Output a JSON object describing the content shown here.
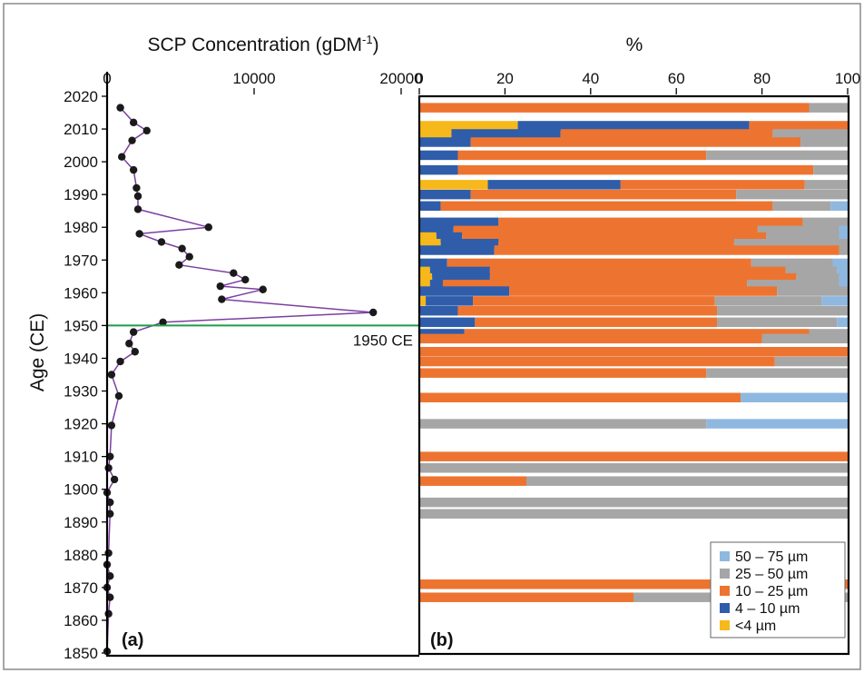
{
  "colors": {
    "um50_75": "#8FB8E0",
    "um25_50": "#A6A6A6",
    "um10_25": "#ED7430",
    "um4_10": "#2F5DAA",
    "lt4": "#F7B81B",
    "line": "#7B3FA0",
    "marker": "#1a1a1a",
    "ref": "#1E9E4A"
  },
  "chart_data": [
    {
      "type": "line",
      "panel_label": "(a)",
      "title": "SCP Concentration (gDM",
      "title_sup": "-1",
      "title_close": ")",
      "ylabel": "Age (CE)",
      "xlim": [
        0,
        20000
      ],
      "ylim": [
        1850,
        2020
      ],
      "xticks": [
        "0",
        "10000",
        "20000"
      ],
      "xtick_values": [
        0,
        10000,
        20000
      ],
      "yticks": [
        "1850",
        "1860",
        "1870",
        "1880",
        "1890",
        "1900",
        "1910",
        "1920",
        "1930",
        "1940",
        "1950",
        "1960",
        "1970",
        "1980",
        "1990",
        "2000",
        "2010",
        "2020"
      ],
      "ytick_values": [
        1850,
        1860,
        1870,
        1880,
        1890,
        1900,
        1910,
        1920,
        1930,
        1940,
        1950,
        1960,
        1970,
        1980,
        1990,
        2000,
        2010,
        2020
      ],
      "reference_line": {
        "y": 1950,
        "label": "1950 CE"
      },
      "points": [
        {
          "x": 900,
          "y": 2016.5
        },
        {
          "x": 1800,
          "y": 2012
        },
        {
          "x": 2700,
          "y": 2009.5
        },
        {
          "x": 1700,
          "y": 2006.5
        },
        {
          "x": 1000,
          "y": 2001.5
        },
        {
          "x": 1800,
          "y": 1997.5
        },
        {
          "x": 2000,
          "y": 1992
        },
        {
          "x": 2100,
          "y": 1989.5
        },
        {
          "x": 2100,
          "y": 1985.5
        },
        {
          "x": 6900,
          "y": 1980
        },
        {
          "x": 2200,
          "y": 1978
        },
        {
          "x": 3700,
          "y": 1975.5
        },
        {
          "x": 5100,
          "y": 1973.5
        },
        {
          "x": 5600,
          "y": 1971
        },
        {
          "x": 4900,
          "y": 1968.5
        },
        {
          "x": 8600,
          "y": 1966
        },
        {
          "x": 9400,
          "y": 1964
        },
        {
          "x": 7700,
          "y": 1962
        },
        {
          "x": 10600,
          "y": 1961
        },
        {
          "x": 7800,
          "y": 1958
        },
        {
          "x": 18100,
          "y": 1954
        },
        {
          "x": 3800,
          "y": 1951
        },
        {
          "x": 1800,
          "y": 1948
        },
        {
          "x": 1500,
          "y": 1944.5
        },
        {
          "x": 1900,
          "y": 1942
        },
        {
          "x": 900,
          "y": 1939
        },
        {
          "x": 300,
          "y": 1935
        },
        {
          "x": 800,
          "y": 1928.5
        },
        {
          "x": 300,
          "y": 1919.5
        },
        {
          "x": 200,
          "y": 1910
        },
        {
          "x": 100,
          "y": 1906.5
        },
        {
          "x": 500,
          "y": 1903
        },
        {
          "x": 0,
          "y": 1899
        },
        {
          "x": 200,
          "y": 1896
        },
        {
          "x": 200,
          "y": 1892.5
        },
        {
          "x": 100,
          "y": 1880.5
        },
        {
          "x": 0,
          "y": 1877
        },
        {
          "x": 200,
          "y": 1873.5
        },
        {
          "x": 0,
          "y": 1870
        },
        {
          "x": 200,
          "y": 1867
        },
        {
          "x": 100,
          "y": 1862
        },
        {
          "x": 0,
          "y": 1850.5
        }
      ]
    },
    {
      "type": "bar",
      "orientation": "horizontal",
      "stacked": true,
      "panel_label": "(b)",
      "title": "%",
      "xlim": [
        0,
        100
      ],
      "ylim": [
        1850,
        2020
      ],
      "xticks": [
        "0",
        "20",
        "40",
        "60",
        "80",
        "100"
      ],
      "xtick_values": [
        0,
        20,
        40,
        60,
        80,
        100
      ],
      "series_order": [
        "lt4",
        "um4_10",
        "um10_25",
        "um25_50",
        "um50_75"
      ],
      "legend": [
        {
          "key": "um50_75",
          "label": "50 – 75 µm"
        },
        {
          "key": "um25_50",
          "label": "25 – 50 µm"
        },
        {
          "key": "um10_25",
          "label": "10 – 25 µm"
        },
        {
          "key": "um4_10",
          "label": "4 – 10 µm"
        },
        {
          "key": "lt4",
          "label": "<4 µm"
        }
      ],
      "legend_position": "bottom-right",
      "bars": [
        {
          "y": 2016.5,
          "lt4": 0,
          "um4_10": 0,
          "um10_25": 91,
          "um25_50": 9,
          "um50_75": 0
        },
        {
          "y": 2011,
          "lt4": 23,
          "um4_10": 54,
          "um10_25": 23,
          "um25_50": 0,
          "um50_75": 0
        },
        {
          "y": 2008.5,
          "lt4": 7.5,
          "um4_10": 25.5,
          "um10_25": 49.5,
          "um25_50": 17.5,
          "um50_75": 0
        },
        {
          "y": 2006,
          "lt4": 0,
          "um4_10": 12,
          "um10_25": 77,
          "um25_50": 11,
          "um50_75": 0
        },
        {
          "y": 2002,
          "lt4": 0,
          "um4_10": 9,
          "um10_25": 58,
          "um25_50": 33,
          "um50_75": 0
        },
        {
          "y": 1997.5,
          "lt4": 0,
          "um4_10": 9,
          "um10_25": 83,
          "um25_50": 8,
          "um50_75": 0
        },
        {
          "y": 1993,
          "lt4": 16,
          "um4_10": 31,
          "um10_25": 43,
          "um25_50": 10,
          "um50_75": 0
        },
        {
          "y": 1990,
          "lt4": 0,
          "um4_10": 12,
          "um10_25": 62,
          "um25_50": 26,
          "um50_75": 0
        },
        {
          "y": 1986.5,
          "lt4": 0,
          "um4_10": 5,
          "um10_25": 77.5,
          "um25_50": 13.5,
          "um50_75": 4
        },
        {
          "y": 1981.5,
          "lt4": 0,
          "um4_10": 18.5,
          "um10_25": 71,
          "um25_50": 10.5,
          "um50_75": 0
        },
        {
          "y": 1979,
          "lt4": 0,
          "um4_10": 8,
          "um10_25": 71,
          "um25_50": 19,
          "um50_75": 2
        },
        {
          "y": 1977,
          "lt4": 4,
          "um4_10": 6,
          "um10_25": 71,
          "um25_50": 17,
          "um50_75": 2
        },
        {
          "y": 1975,
          "lt4": 5,
          "um4_10": 13.5,
          "um10_25": 55,
          "um25_50": 26.5,
          "um50_75": 0
        },
        {
          "y": 1973,
          "lt4": 0,
          "um4_10": 17.5,
          "um10_25": 80.5,
          "um25_50": 2,
          "um50_75": 0
        },
        {
          "y": 1969,
          "lt4": 0,
          "um4_10": 6.5,
          "um10_25": 71,
          "um25_50": 19,
          "um50_75": 3.5
        },
        {
          "y": 1966.5,
          "lt4": 2.5,
          "um4_10": 14,
          "um10_25": 69,
          "um25_50": 12,
          "um50_75": 2.5
        },
        {
          "y": 1964.5,
          "lt4": 3,
          "um4_10": 13.5,
          "um10_25": 71.5,
          "um25_50": 10,
          "um50_75": 2
        },
        {
          "y": 1962.5,
          "lt4": 2.5,
          "um4_10": 3,
          "um10_25": 71,
          "um25_50": 21.5,
          "um50_75": 2
        },
        {
          "y": 1960.5,
          "lt4": 0,
          "um4_10": 21,
          "um10_25": 62.5,
          "um25_50": 16.5,
          "um50_75": 0
        },
        {
          "y": 1957.5,
          "lt4": 1.5,
          "um4_10": 11,
          "um10_25": 56.5,
          "um25_50": 25,
          "um50_75": 6
        },
        {
          "y": 1954.5,
          "lt4": 0,
          "um4_10": 9,
          "um10_25": 60.5,
          "um25_50": 30.5,
          "um50_75": 0
        },
        {
          "y": 1951,
          "lt4": 0,
          "um4_10": 13,
          "um10_25": 56.5,
          "um25_50": 28,
          "um50_75": 2.5
        },
        {
          "y": 1947.5,
          "lt4": 0,
          "um4_10": 10.5,
          "um10_25": 80.5,
          "um25_50": 9,
          "um50_75": 0
        },
        {
          "y": 1946,
          "lt4": 0,
          "um4_10": 0,
          "um10_25": 80,
          "um25_50": 20,
          "um50_75": 0
        },
        {
          "y": 1942,
          "lt4": 0,
          "um4_10": 0,
          "um10_25": 100,
          "um25_50": 0,
          "um50_75": 0
        },
        {
          "y": 1939,
          "lt4": 0,
          "um4_10": 0,
          "um10_25": 83,
          "um25_50": 17,
          "um50_75": 0
        },
        {
          "y": 1935.5,
          "lt4": 0,
          "um4_10": 0,
          "um10_25": 67,
          "um25_50": 33,
          "um50_75": 0
        },
        {
          "y": 1928,
          "lt4": 0,
          "um4_10": 0,
          "um10_25": 75,
          "um25_50": 0,
          "um50_75": 25
        },
        {
          "y": 1920,
          "lt4": 0,
          "um4_10": 0,
          "um10_25": 0,
          "um25_50": 67,
          "um50_75": 33
        },
        {
          "y": 1910,
          "lt4": 0,
          "um4_10": 0,
          "um10_25": 100,
          "um25_50": 0,
          "um50_75": 0
        },
        {
          "y": 1906.5,
          "lt4": 0,
          "um4_10": 0,
          "um10_25": 0,
          "um25_50": 100,
          "um50_75": 0
        },
        {
          "y": 1902.5,
          "lt4": 0,
          "um4_10": 0,
          "um10_25": 25,
          "um25_50": 75,
          "um50_75": 0
        },
        {
          "y": 1896,
          "lt4": 0,
          "um4_10": 0,
          "um10_25": 0,
          "um25_50": 100,
          "um50_75": 0
        },
        {
          "y": 1892.5,
          "lt4": 0,
          "um4_10": 0,
          "um10_25": 0,
          "um25_50": 100,
          "um50_75": 0
        },
        {
          "y": 1871,
          "lt4": 0,
          "um4_10": 0,
          "um10_25": 100,
          "um25_50": 0,
          "um50_75": 0
        },
        {
          "y": 1867,
          "lt4": 0,
          "um4_10": 0,
          "um10_25": 50,
          "um25_50": 50,
          "um50_75": 0
        }
      ]
    }
  ]
}
